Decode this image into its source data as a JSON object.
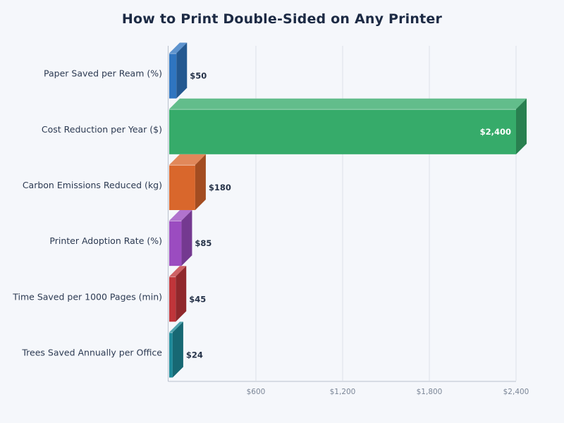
{
  "chart_data": {
    "type": "bar",
    "orientation": "horizontal",
    "title": "How to Print Double-Sided on Any Printer",
    "categories": [
      "Paper Saved per Ream (%)",
      "Cost Reduction per Year ($)",
      "Carbon Emissions Reduced (kg)",
      "Printer Adoption Rate (%)",
      "Time Saved per 1000 Pages (min)",
      "Trees Saved Annually per Office"
    ],
    "values": [
      50,
      2400,
      180,
      85,
      45,
      24
    ],
    "value_labels": [
      "$50",
      "$2,400",
      "$180",
      "$85",
      "$45",
      "$24"
    ],
    "colors": [
      "#2f75c0",
      "#36ab6a",
      "#d9672c",
      "#9b4cc0",
      "#c0353a",
      "#1e8a99"
    ],
    "xlim": [
      0,
      2400
    ],
    "x_ticks": [
      600,
      1200,
      1800,
      2400
    ],
    "x_tick_labels": [
      "$600",
      "$1,200",
      "$1,800",
      "$2,400"
    ],
    "grid": true,
    "style": "3d"
  }
}
